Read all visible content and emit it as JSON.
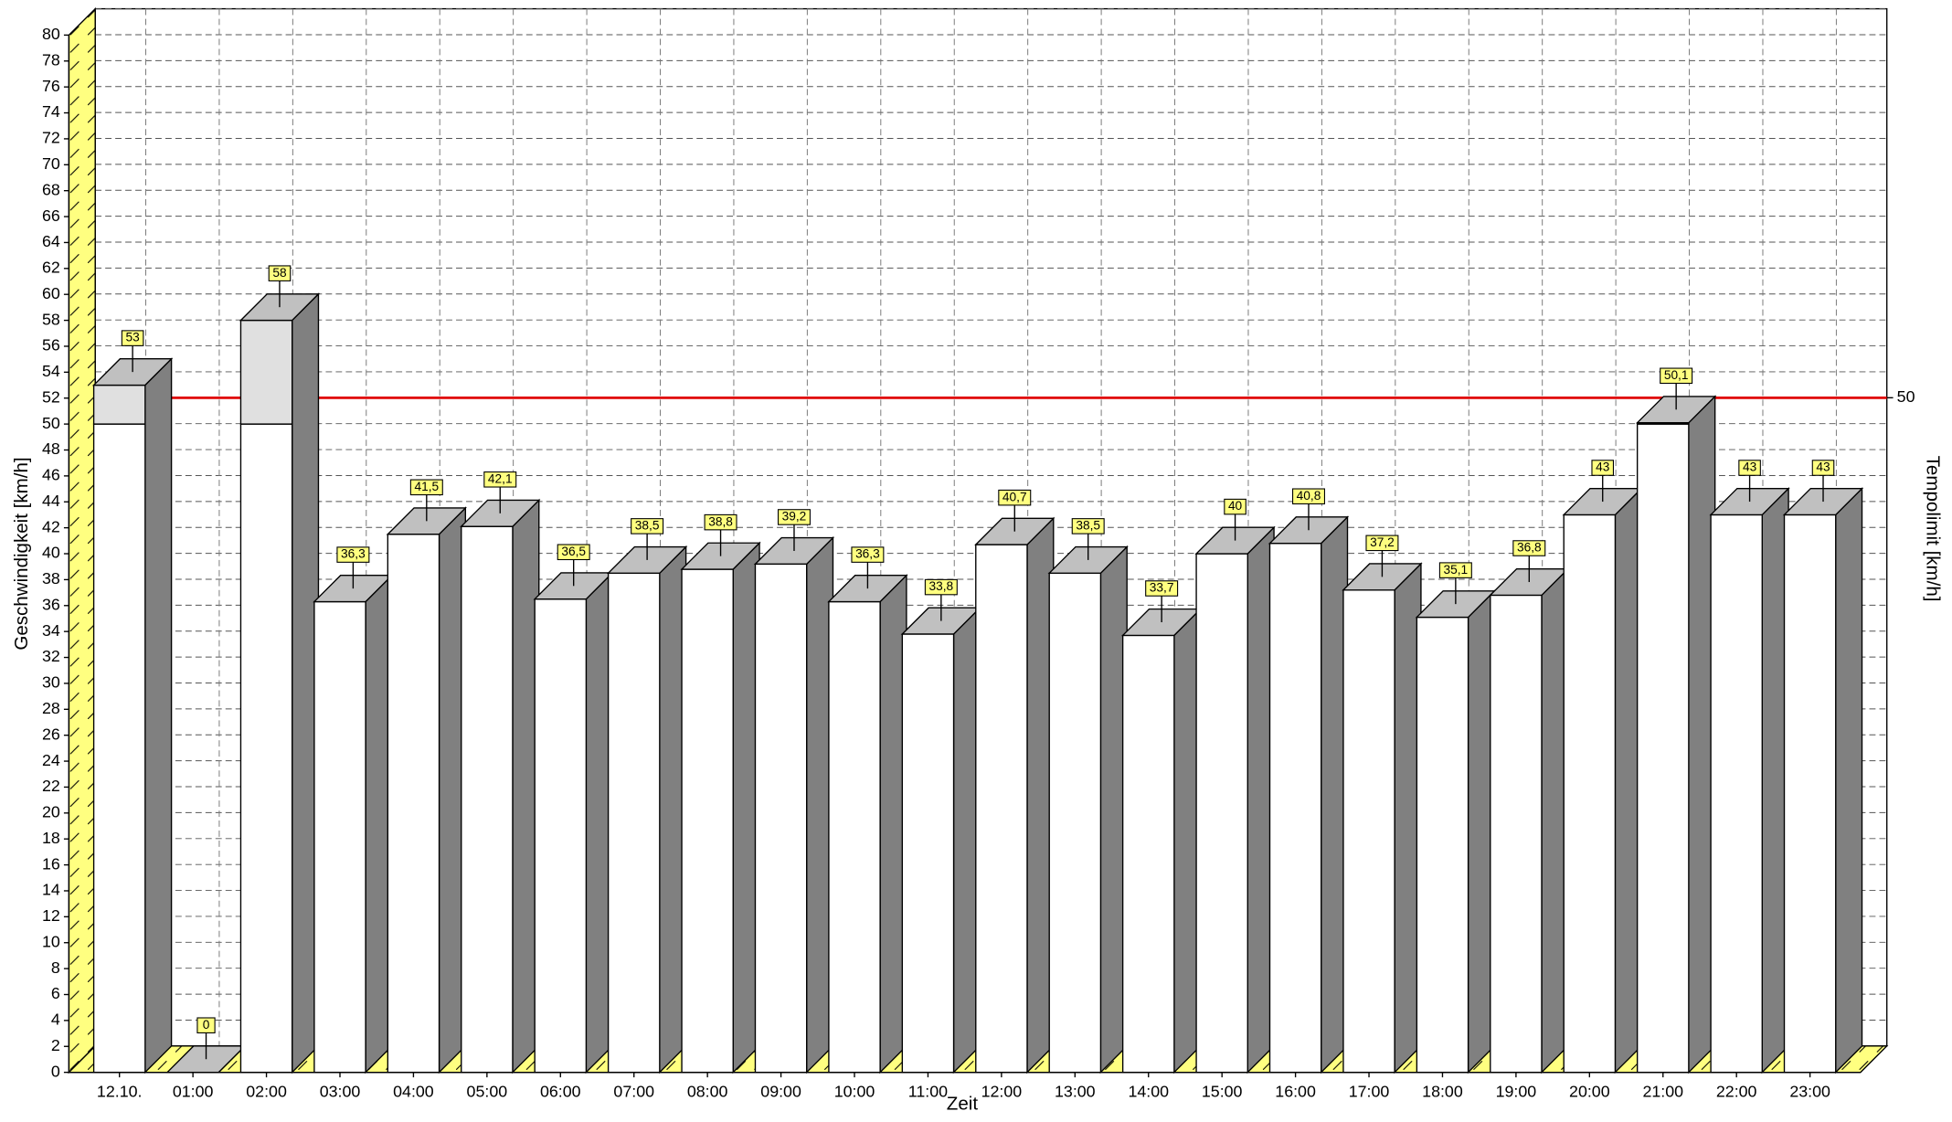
{
  "chart_data": {
    "type": "bar3d",
    "x_label": "Zeit",
    "y_label": "Geschwindigkeit [km/h]",
    "y2_label": "Tempolimit [km/h]",
    "speed_limit": 50,
    "speed_limit_color": "#e00000",
    "categories": [
      "12.10.",
      "01:00",
      "02:00",
      "03:00",
      "04:00",
      "05:00",
      "06:00",
      "07:00",
      "08:00",
      "09:00",
      "10:00",
      "11:00",
      "12:00",
      "13:00",
      "14:00",
      "15:00",
      "16:00",
      "17:00",
      "18:00",
      "19:00",
      "20:00",
      "21:00",
      "22:00",
      "23:00"
    ],
    "values": [
      53,
      0,
      58,
      36.3,
      41.5,
      42.1,
      36.5,
      38.5,
      38.8,
      39.2,
      36.3,
      33.8,
      40.7,
      38.5,
      33.7,
      40,
      40.8,
      37.2,
      35.1,
      36.8,
      43,
      50.1,
      43,
      43
    ],
    "value_labels": [
      "53",
      "0",
      "58",
      "36,3",
      "41,5",
      "42,1",
      "36,5",
      "38,5",
      "38,8",
      "39,2",
      "36,3",
      "33,8",
      "40,7",
      "38,5",
      "33,7",
      "40",
      "40,8",
      "37,2",
      "35,1",
      "36,8",
      "43",
      "50,1",
      "43",
      "43"
    ],
    "color": "#ffffff",
    "over_limit_color": "#e0e0e0",
    "ylim": [
      0,
      80
    ],
    "yticks": [
      0,
      2,
      4,
      6,
      8,
      10,
      12,
      14,
      16,
      18,
      20,
      22,
      24,
      26,
      28,
      30,
      32,
      34,
      36,
      38,
      40,
      42,
      44,
      46,
      48,
      50,
      52,
      54,
      56,
      58,
      60,
      62,
      64,
      66,
      68,
      70,
      72,
      74,
      76,
      78,
      80
    ],
    "grid": true
  }
}
